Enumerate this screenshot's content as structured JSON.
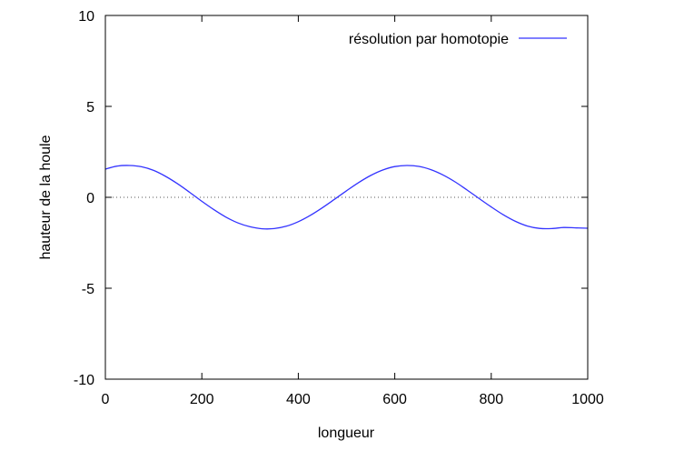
{
  "chart_data": {
    "type": "line",
    "xlabel": "longueur",
    "ylabel": "hauteur de la houle",
    "xlim": [
      0,
      1000
    ],
    "ylim": [
      -10,
      10
    ],
    "x_ticks": [
      0,
      200,
      400,
      600,
      800,
      1000
    ],
    "y_ticks": [
      -10,
      -5,
      0,
      5,
      10
    ],
    "x_tick_labels": [
      "0",
      "200",
      "400",
      "600",
      "800",
      "1000"
    ],
    "y_tick_labels": [
      "-10",
      "-5",
      "0",
      "5",
      "10"
    ],
    "grid": false,
    "legend_position": "top-right",
    "zero_line": "dotted",
    "series": [
      {
        "name": "résolution par homotopie",
        "color": "#3333ff",
        "x": [
          0,
          25,
          50,
          75,
          100,
          125,
          150,
          175,
          200,
          225,
          250,
          275,
          300,
          325,
          350,
          375,
          400,
          425,
          450,
          475,
          500,
          525,
          550,
          575,
          600,
          625,
          650,
          675,
          700,
          725,
          750,
          775,
          800,
          825,
          850,
          875,
          900,
          925,
          950,
          975,
          1000
        ],
        "y": [
          1.55,
          1.72,
          1.75,
          1.68,
          1.48,
          1.15,
          0.74,
          0.27,
          -0.22,
          -0.68,
          -1.09,
          -1.41,
          -1.62,
          -1.73,
          -1.72,
          -1.59,
          -1.34,
          -0.99,
          -0.57,
          -0.11,
          0.36,
          0.81,
          1.2,
          1.5,
          1.69,
          1.75,
          1.7,
          1.52,
          1.23,
          0.85,
          0.4,
          -0.07,
          -0.53,
          -0.96,
          -1.32,
          -1.58,
          -1.71,
          -1.72,
          -1.66,
          -1.68,
          -1.7
        ]
      }
    ]
  }
}
